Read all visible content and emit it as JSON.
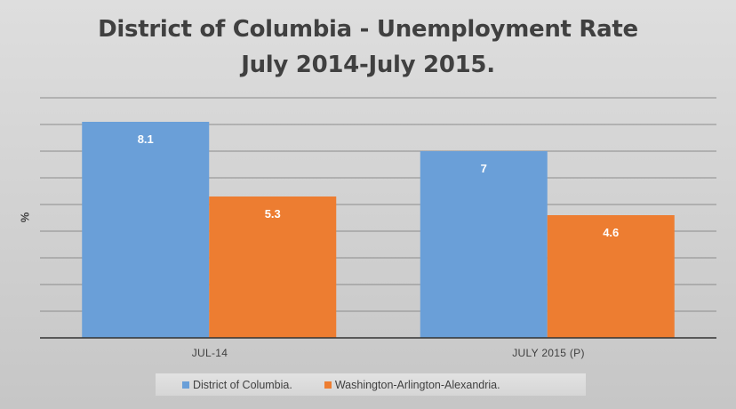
{
  "colors": {
    "district": "#6a9fd8",
    "washington": "#ed7d31",
    "gridline": "#8c8c8c",
    "axis": "#333333"
  },
  "chart_data": {
    "type": "bar",
    "title": "District of Columbia - Unemployment Rate",
    "subtitle": "July 2014-July 2015.",
    "xlabel": "",
    "ylabel": "%",
    "categories": [
      "JUL-14",
      "JULY 2015 (P)"
    ],
    "series": [
      {
        "name": "District of Columbia.",
        "values": [
          8.1,
          7
        ]
      },
      {
        "name": "Washington-Arlington-Alexandria.",
        "values": [
          5.3,
          4.6
        ]
      }
    ],
    "value_labels": [
      [
        "8.1",
        "7"
      ],
      [
        "5.3",
        "4.6"
      ]
    ],
    "ylim": [
      0,
      9
    ],
    "grid": true,
    "legend_position": "bottom"
  }
}
